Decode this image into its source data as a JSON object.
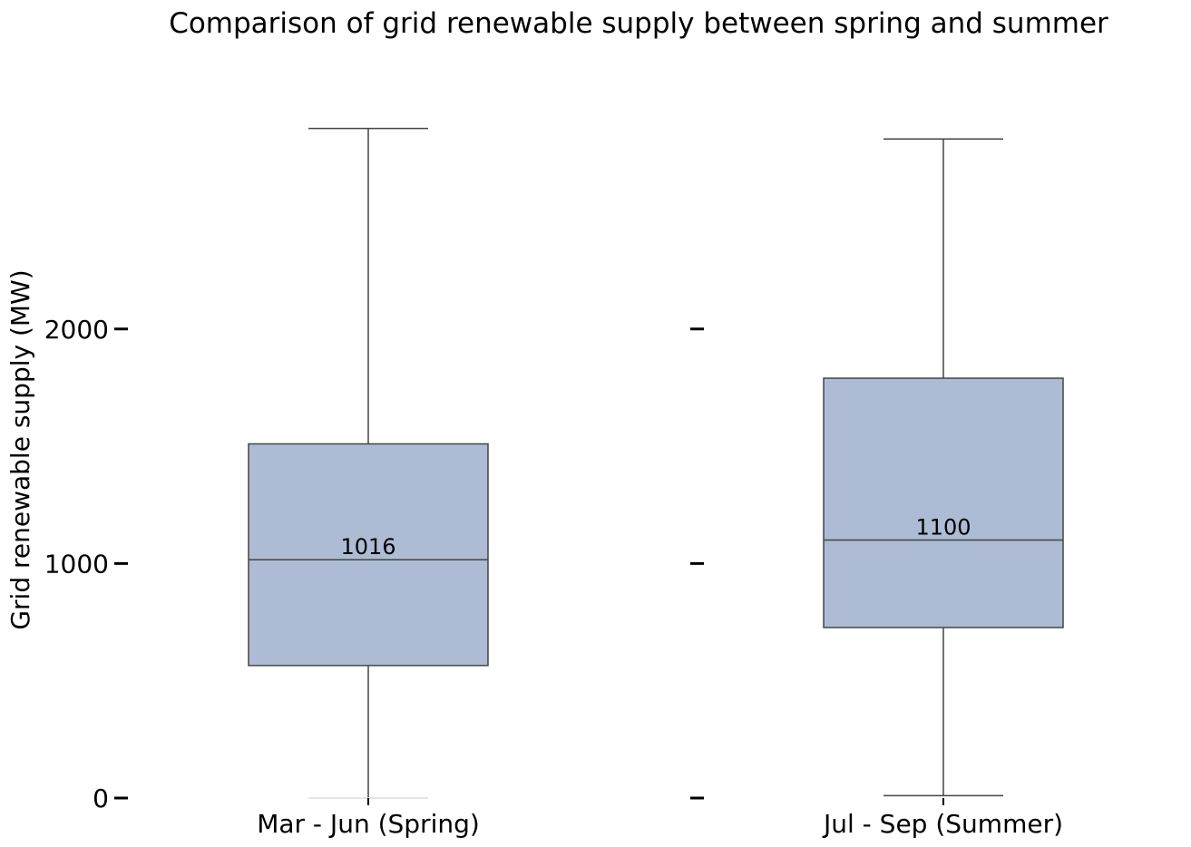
{
  "chart_data": {
    "type": "box",
    "title": "Comparison of grid renewable supply between spring and summer",
    "ylabel": "Grid renewable supply (MW)",
    "xlabel": "",
    "ylim": [
      0,
      2900
    ],
    "yticks": [
      0,
      1000,
      2000
    ],
    "ytick_labels": [
      "0",
      "1000",
      "2000"
    ],
    "grid": false,
    "box_color": "#adbcd4",
    "line_color": "#444444",
    "categories": [
      "Mar - Jun (Spring)",
      "Jul - Sep (Summer)"
    ],
    "boxes": [
      {
        "category": "Mar - Jun (Spring)",
        "whisker_low": 0,
        "q1": 565,
        "median": 1016,
        "q3": 1510,
        "whisker_high": 2855,
        "median_label": "1016"
      },
      {
        "category": "Jul - Sep (Summer)",
        "whisker_low": 10,
        "q1": 727,
        "median": 1100,
        "q3": 1790,
        "whisker_high": 2810,
        "median_label": "1100"
      }
    ]
  }
}
